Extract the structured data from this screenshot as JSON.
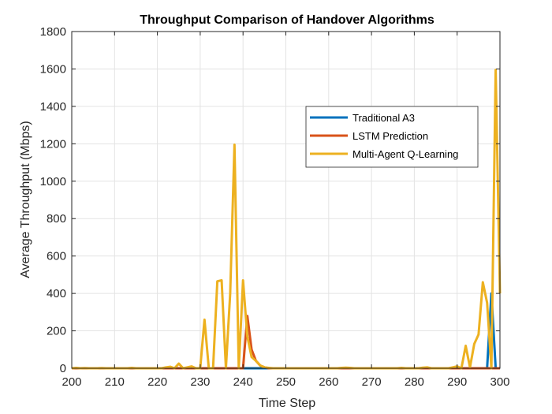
{
  "chart_data": {
    "type": "line",
    "title": "Throughput Comparison of Handover Algorithms",
    "xlabel": "Time Step",
    "ylabel": "Average Throughput (Mbps)",
    "xlim": [
      200,
      300
    ],
    "ylim": [
      0,
      1800
    ],
    "xticks": [
      "200",
      "210",
      "220",
      "230",
      "240",
      "250",
      "260",
      "270",
      "280",
      "290",
      "300"
    ],
    "yticks": [
      "0",
      "200",
      "400",
      "600",
      "800",
      "1000",
      "1200",
      "1400",
      "1600",
      "1800"
    ],
    "grid": true,
    "legend_position": "upper-right",
    "x": [
      200,
      201,
      202,
      203,
      204,
      205,
      206,
      207,
      208,
      209,
      210,
      211,
      212,
      213,
      214,
      215,
      216,
      217,
      218,
      219,
      220,
      221,
      222,
      223,
      224,
      225,
      226,
      227,
      228,
      229,
      230,
      231,
      232,
      233,
      234,
      235,
      236,
      237,
      238,
      239,
      240,
      241,
      242,
      243,
      244,
      245,
      246,
      247,
      248,
      249,
      250,
      251,
      252,
      253,
      254,
      255,
      256,
      257,
      258,
      259,
      260,
      261,
      262,
      263,
      264,
      265,
      266,
      267,
      268,
      269,
      270,
      271,
      272,
      273,
      274,
      275,
      276,
      277,
      278,
      279,
      280,
      281,
      282,
      283,
      284,
      285,
      286,
      287,
      288,
      289,
      290,
      291,
      292,
      293,
      294,
      295,
      296,
      297,
      298,
      299,
      300
    ],
    "series": [
      {
        "name": "Traditional A3",
        "color": "#0072BD",
        "values": [
          0,
          0,
          0,
          0,
          0,
          0,
          0,
          0,
          0,
          0,
          0,
          0,
          0,
          0,
          0,
          0,
          0,
          0,
          0,
          0,
          0,
          0,
          0,
          0,
          0,
          0,
          0,
          0,
          0,
          0,
          0,
          0,
          0,
          0,
          0,
          0,
          0,
          0,
          0,
          0,
          0,
          0,
          0,
          0,
          0,
          0,
          0,
          0,
          0,
          0,
          0,
          0,
          0,
          0,
          0,
          0,
          0,
          0,
          0,
          0,
          0,
          0,
          0,
          0,
          0,
          0,
          0,
          0,
          0,
          0,
          0,
          0,
          0,
          0,
          0,
          0,
          0,
          0,
          0,
          0,
          0,
          0,
          0,
          0,
          0,
          0,
          0,
          0,
          0,
          0,
          0,
          0,
          0,
          0,
          0,
          0,
          0,
          0,
          400,
          0,
          0
        ]
      },
      {
        "name": "LSTM Prediction",
        "color": "#D95319",
        "values": [
          0,
          0,
          0,
          0,
          0,
          0,
          0,
          0,
          0,
          0,
          0,
          0,
          0,
          0,
          0,
          0,
          0,
          0,
          0,
          0,
          0,
          0,
          0,
          0,
          0,
          0,
          0,
          0,
          0,
          0,
          0,
          0,
          0,
          0,
          0,
          0,
          0,
          0,
          0,
          0,
          0,
          280,
          100,
          40,
          15,
          5,
          0,
          0,
          0,
          0,
          0,
          0,
          0,
          0,
          0,
          0,
          0,
          0,
          0,
          0,
          0,
          0,
          0,
          0,
          0,
          0,
          0,
          0,
          0,
          0,
          0,
          0,
          0,
          0,
          0,
          0,
          0,
          0,
          0,
          0,
          0,
          0,
          0,
          0,
          0,
          0,
          0,
          0,
          0,
          0,
          0,
          0,
          0,
          0,
          0,
          0,
          0,
          0,
          0,
          0,
          0
        ]
      },
      {
        "name": "Multi-Agent Q-Learning",
        "color": "#EDB120",
        "values": [
          0,
          2,
          0,
          1,
          0,
          0,
          0,
          1,
          0,
          0,
          0,
          0,
          0,
          0,
          2,
          0,
          0,
          0,
          0,
          0,
          0,
          0,
          5,
          8,
          0,
          25,
          0,
          5,
          10,
          0,
          0,
          260,
          0,
          0,
          465,
          470,
          0,
          400,
          1195,
          0,
          470,
          170,
          60,
          40,
          15,
          5,
          2,
          0,
          0,
          0,
          0,
          0,
          0,
          0,
          0,
          0,
          0,
          0,
          0,
          0,
          0,
          0,
          0,
          2,
          3,
          2,
          0,
          0,
          0,
          0,
          0,
          0,
          0,
          0,
          0,
          0,
          0,
          2,
          0,
          0,
          0,
          0,
          3,
          5,
          0,
          0,
          0,
          0,
          0,
          5,
          10,
          0,
          120,
          5,
          130,
          180,
          460,
          350,
          0,
          1595,
          400
        ]
      }
    ]
  }
}
